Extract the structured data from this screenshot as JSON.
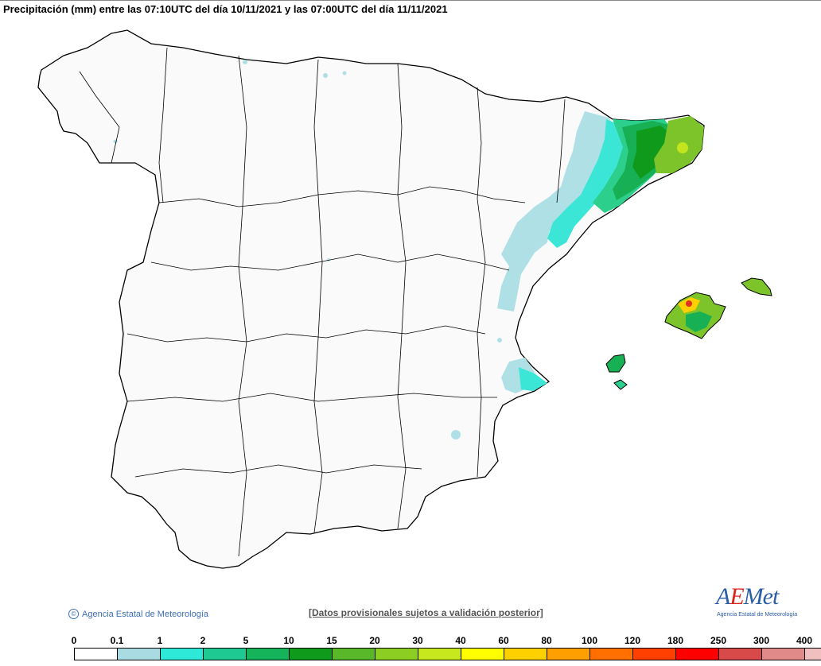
{
  "header": {
    "title": "Precipitación (mm) entre las 07:10UTC del día 10/11/2021 y las 07:00UTC del día 11/11/2021"
  },
  "footer": {
    "copyright": "Agencia Estatal de Meteorología",
    "disclaimer": "[Datos provisionales sujetos a validación posterior]",
    "logo_word_a": "A",
    "logo_word_e": "E",
    "logo_word_rest": "Met",
    "logo_subtitle": "Agencia Estatal de Meteorología"
  },
  "legend": {
    "labels": [
      "0",
      "0.1",
      "1",
      "2",
      "5",
      "10",
      "15",
      "20",
      "30",
      "40",
      "60",
      "80",
      "100",
      "120",
      "180",
      "250",
      "300",
      "400"
    ],
    "colors": [
      "#ffffff",
      "#a8dce2",
      "#2ee8d8",
      "#1fc992",
      "#16b45a",
      "#0f9a1c",
      "#58b82a",
      "#8ccf22",
      "#c8e81e",
      "#ffff00",
      "#ffd000",
      "#ffa000",
      "#ff7000",
      "#ff4000",
      "#ff0000",
      "#d84a4a",
      "#e08a8a",
      "#f0c0c0"
    ]
  },
  "colors": {
    "land": "#fafafa",
    "border": "#000000",
    "light_blue": "#aee0e6",
    "cyan": "#3ce6d6",
    "green_light": "#2ccf8c",
    "green": "#18b054",
    "green_dark": "#0f9a1c",
    "yellow_green": "#7cc42a",
    "lime": "#c4e41e",
    "red": "#e03020",
    "logo_blue": "#2b5ea8",
    "logo_red": "#d9261c"
  }
}
